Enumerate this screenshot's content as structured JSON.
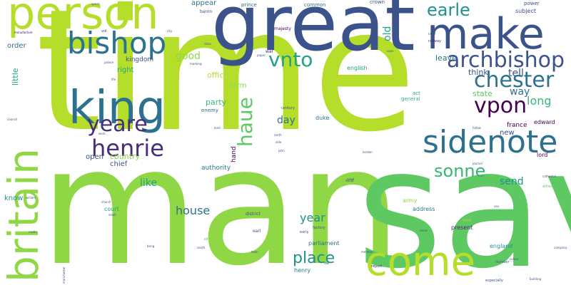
{
  "palette": {
    "lime": "#b5de2b",
    "green": "#5ec962",
    "bright_green": "#8fd744",
    "teal": "#21918c",
    "steel": "#2c728e",
    "navy": "#3b528b",
    "indigo": "#472d7b",
    "purple": "#440154",
    "aqua": "#20a386",
    "mint": "#35b779"
  },
  "words": {
    "time": "time",
    "man": "man",
    "say": "say",
    "great": "great",
    "person": "person",
    "make": "make",
    "king": "king",
    "britain": "britain",
    "come": "come",
    "sidenote": "sidenote",
    "bishop": "bishop",
    "archbishop": "archbishop",
    "chester": "chester",
    "vpon": "vpon",
    "henrie": "henrie",
    "yeare": "yeare",
    "haue": "haue",
    "vnto": "vnto",
    "earle": "earle",
    "sonne": "sonne",
    "place": "place",
    "year": "year",
    "house": "house",
    "long": "long",
    "like": "like",
    "good": "good",
    "day": "day",
    "party": "party",
    "office": "office",
    "form": "form",
    "way": "way",
    "tell": "tell",
    "think": "think",
    "leave": "leave",
    "state": "state",
    "little": "little",
    "order": "order",
    "right": "right",
    "country": "country",
    "chief": "chief",
    "open": "open",
    "kingdom": "kingdom",
    "appear": "appear",
    "old": "old",
    "english": "english",
    "send": "send",
    "new": "new",
    "france": "france",
    "edward": "edward",
    "lord": "lord",
    "authority": "authority",
    "hand": "hand",
    "duke": "duke",
    "parliament": "parliament",
    "henry": "henry",
    "england": "england",
    "present": "present",
    "army": "army",
    "address": "address",
    "court": "court",
    "know": "know",
    "enemy": "enemy",
    "act": "act",
    "general": "general",
    "subject": "subject",
    "power": "power",
    "crown": "crown",
    "common": "common",
    "prince": "prince",
    "baron": "baron",
    "majesty": "majesty",
    "war": "war",
    "coal": "coal",
    "railway": "railway",
    "district": "district",
    "century": "century",
    "earl": "earl",
    "factory": "factory",
    "early": "early",
    "sir": "sir",
    "report": "report",
    "number": "number",
    "especially": "especially",
    "child": "child",
    "alfred": "alfred",
    "cathedral": "cathedral",
    "manufacture": "manufacture",
    "vol": "vol",
    "class": "class",
    "marking": "marking",
    "land": "land",
    "work": "work",
    "north": "north",
    "side": "side",
    "john": "john",
    "follow": "follow",
    "journal": "journal",
    "london": "london",
    "council": "council",
    "william": "william",
    "castle": "castle",
    "church": "church",
    "town": "town",
    "south": "south",
    "manchester": "manchester",
    "company": "company",
    "building": "building",
    "colour": "colour",
    "social": "social",
    "member": "member",
    "law": "law",
    "small": "small",
    "soon": "soon",
    "city": "city",
    "life": "life",
    "paper": "paper",
    "palace": "palace",
    "speak": "speak",
    "bring": "bring",
    "mean": "mean",
    "sea": "sea",
    "need": "need"
  }
}
